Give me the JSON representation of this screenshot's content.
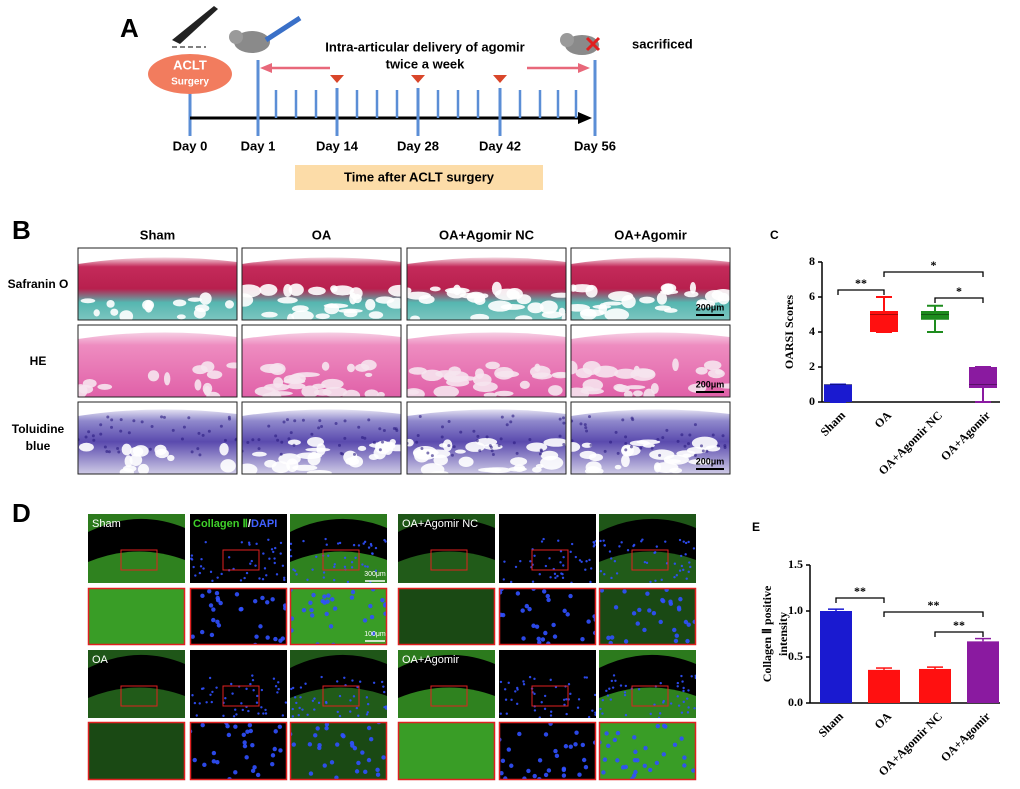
{
  "panel_labels": [
    "A",
    "B",
    "C",
    "D",
    "E"
  ],
  "timeline": {
    "surgery": "ACLT",
    "surgery_sub": "Surgery",
    "delivery": [
      "Intra-articular delivery of agomir",
      "twice a week"
    ],
    "endpoint": "sacrificed",
    "days": [
      "Day 0",
      "Day 1",
      "Day 14",
      "Day 28",
      "Day 42",
      "Day 56"
    ],
    "axis_label": "Time after ACLT surgery"
  },
  "histology": {
    "columns": [
      "Sham",
      "OA",
      "OA+Agomir NC",
      "OA+Agomir"
    ],
    "rows": [
      "Safranin O",
      "HE",
      "Toluidine blue"
    ],
    "scale_bar": "200μm"
  },
  "immuno": {
    "groups": [
      "Sham",
      "OA+Agomir NC",
      "OA",
      "OA+Agomir"
    ],
    "stain": [
      "Collagen Ⅱ",
      "/",
      "DAPI"
    ],
    "scale_bars": [
      "300μm",
      "100μm"
    ]
  },
  "chart_data": [
    {
      "type": "box",
      "ylabel": "OARSI Scores",
      "categories": [
        "Sham",
        "OA",
        "OA+Agomir NC",
        "OA+Agomir"
      ],
      "colors": [
        "#1a1ad0",
        "#ff1010",
        "#1e8c1e",
        "#8a1aa0"
      ],
      "min": [
        0,
        4,
        4,
        0
      ],
      "q1": [
        0,
        4,
        4.7,
        0.8
      ],
      "median": [
        1,
        5,
        5,
        1
      ],
      "q3": [
        1,
        5.2,
        5.2,
        2
      ],
      "max": [
        1,
        6,
        5.5,
        2
      ],
      "ylim": [
        0,
        8
      ],
      "yticks": [
        0,
        2,
        4,
        6,
        8
      ],
      "annotations": [
        "**",
        "*",
        "*"
      ]
    },
    {
      "type": "bar",
      "ylabel": [
        "Collagen Ⅱ positive",
        "intensity"
      ],
      "categories": [
        "Sham",
        "OA",
        "OA+Agomir NC",
        "OA+Agomir"
      ],
      "colors": [
        "#1a1ad0",
        "#ff1010",
        "#ff1010",
        "#8a1aa0"
      ],
      "values": [
        1.0,
        0.36,
        0.37,
        0.67
      ],
      "errors": [
        0.02,
        0.02,
        0.02,
        0.03
      ],
      "ylim": [
        0,
        1.5
      ],
      "yticks": [
        {
          "value": 0,
          "label": "0.0"
        },
        {
          "value": 0.5,
          "label": "0.5"
        },
        {
          "value": 1,
          "label": "1.0"
        },
        {
          "value": 1.5,
          "label": "1.5"
        }
      ],
      "annotations": [
        "**",
        "**",
        "**"
      ]
    }
  ]
}
